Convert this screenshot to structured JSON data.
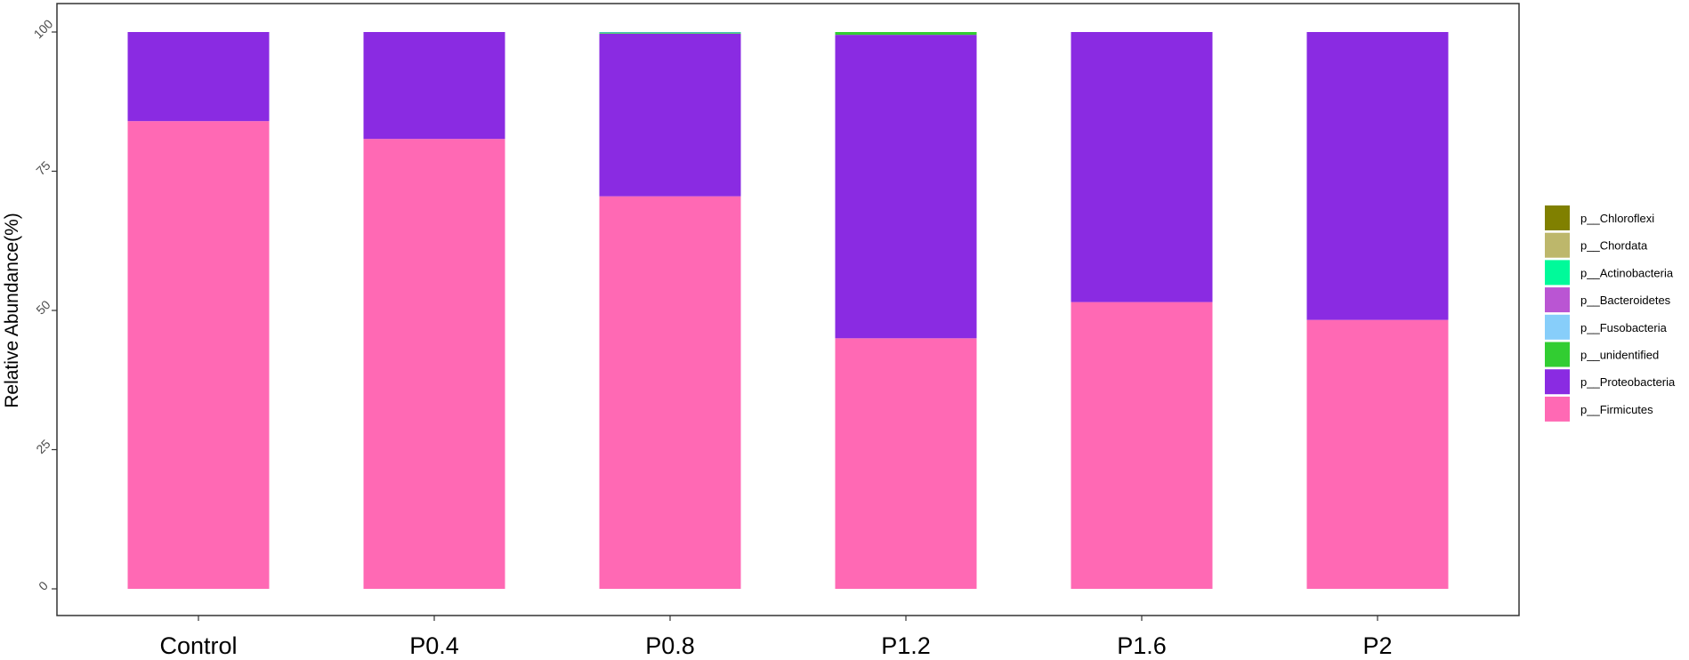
{
  "chart_data": {
    "type": "bar",
    "stacked": true,
    "title": "",
    "xlabel": "",
    "ylabel": "Relative Abundance(%)",
    "ylim": [
      0,
      100
    ],
    "yticks": [
      "0",
      "25",
      "50",
      "75",
      "100"
    ],
    "grid": false,
    "legend_position": "right",
    "categories": [
      "Control",
      "P0.4",
      "P0.8",
      "P1.2",
      "P1.6",
      "P2"
    ],
    "series": [
      {
        "name": "p__Firmicutes",
        "color": "#FF69B4",
        "values": [
          84.0,
          80.8,
          70.5,
          45.0,
          51.5,
          48.3
        ]
      },
      {
        "name": "p__Proteobacteria",
        "color": "#8A2BE2",
        "values": [
          16.0,
          19.2,
          29.2,
          54.5,
          48.5,
          51.7
        ]
      },
      {
        "name": "p__unidentified",
        "color": "#32CD32",
        "values": [
          0,
          0,
          0.15,
          0.5,
          0,
          0
        ]
      },
      {
        "name": "p__Fusobacteria",
        "color": "#87CEFA",
        "values": [
          0,
          0,
          0.05,
          0,
          0,
          0
        ]
      },
      {
        "name": "p__Bacteroidetes",
        "color": "#BA55D3",
        "values": [
          0,
          0,
          0.05,
          0,
          0,
          0
        ]
      },
      {
        "name": "p__Actinobacteria",
        "color": "#00FA9A",
        "values": [
          0,
          0,
          0.05,
          0,
          0,
          0
        ]
      },
      {
        "name": "p__Chordata",
        "color": "#BDB76B",
        "values": [
          0,
          0,
          0,
          0,
          0,
          0
        ]
      },
      {
        "name": "p__Chloroflexi",
        "color": "#808000",
        "values": [
          0,
          0,
          0,
          0,
          0,
          0
        ]
      }
    ]
  }
}
